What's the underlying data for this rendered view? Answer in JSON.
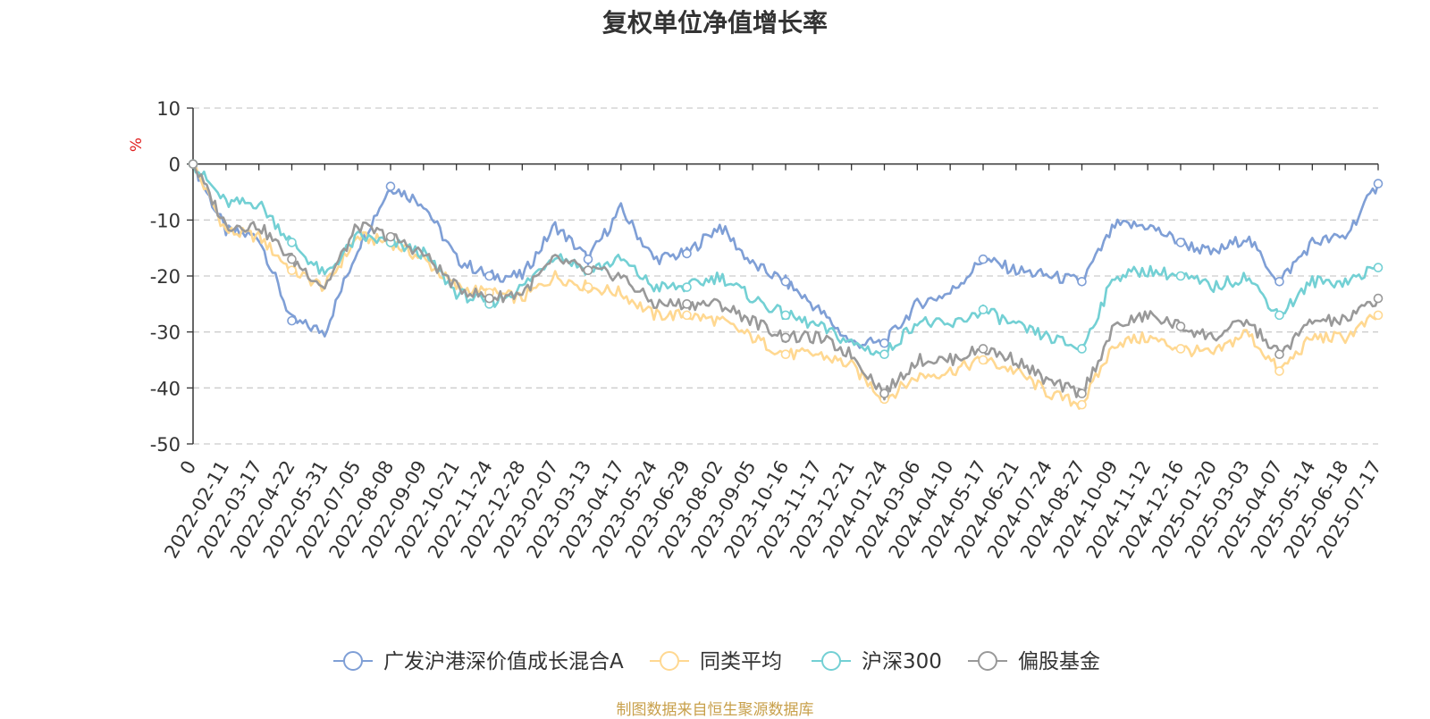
{
  "chart_data": {
    "type": "line",
    "title": "复权单位净值增长率",
    "ylabel": "%",
    "ylim": [
      -50,
      10
    ],
    "yticks": [
      10,
      0,
      -10,
      -20,
      -30,
      -40,
      -50
    ],
    "grid": true,
    "legend_position": "bottom",
    "x_ticks": [
      "0",
      "2022-02-11",
      "2022-03-17",
      "2022-04-22",
      "2022-05-31",
      "2022-07-05",
      "2022-08-08",
      "2022-09-09",
      "2022-10-21",
      "2022-11-24",
      "2022-12-28",
      "2023-02-07",
      "2023-03-13",
      "2023-04-17",
      "2023-05-24",
      "2023-06-29",
      "2023-08-02",
      "2023-09-05",
      "2023-10-16",
      "2023-11-17",
      "2023-12-21",
      "2024-01-24",
      "2024-03-06",
      "2024-04-10",
      "2024-05-17",
      "2024-06-21",
      "2024-07-24",
      "2024-08-27",
      "2024-10-09",
      "2024-11-12",
      "2024-12-16",
      "2025-01-20",
      "2025-03-03",
      "2025-04-07",
      "2025-05-14",
      "2025-06-18",
      "2025-07-17"
    ],
    "series": [
      {
        "name": "广发沪港深价值成长混合A",
        "color": "#7f9fd6",
        "values": [
          0,
          -12,
          -13,
          -28,
          -30,
          -15,
          -4,
          -7,
          -17,
          -20,
          -20,
          -11,
          -17,
          -8,
          -17,
          -16,
          -11,
          -18,
          -21,
          -26,
          -32,
          -32,
          -25,
          -23,
          -17,
          -19,
          -20,
          -21,
          -11,
          -11,
          -14,
          -16,
          -13,
          -21,
          -14,
          -13,
          -3.5
        ]
      },
      {
        "name": "同类平均",
        "color": "#ffd891",
        "values": [
          0,
          -12,
          -13,
          -19,
          -22,
          -13,
          -14,
          -17,
          -22,
          -23,
          -24,
          -20,
          -22,
          -23,
          -27,
          -27,
          -28,
          -31,
          -34,
          -34,
          -36,
          -42,
          -38,
          -37,
          -35,
          -37,
          -41,
          -43,
          -32,
          -31,
          -33,
          -34,
          -30,
          -37,
          -31,
          -31,
          -27
        ]
      },
      {
        "name": "沪深300",
        "color": "#73d0d4",
        "values": [
          0,
          -7,
          -7,
          -14,
          -20,
          -13,
          -14,
          -16,
          -23,
          -25,
          -22,
          -16,
          -19,
          -17,
          -22,
          -22,
          -20,
          -24,
          -27,
          -29,
          -32,
          -34,
          -28,
          -29,
          -26,
          -29,
          -31,
          -33,
          -20,
          -19,
          -20,
          -22,
          -20,
          -27,
          -21,
          -21,
          -18.5
        ]
      },
      {
        "name": "偏股基金",
        "color": "#999999",
        "values": [
          0,
          -11,
          -11,
          -17,
          -22,
          -11,
          -13,
          -16,
          -22,
          -24,
          -23,
          -17,
          -19,
          -20,
          -25,
          -25,
          -25,
          -28,
          -31,
          -31,
          -34,
          -41,
          -35,
          -35,
          -33,
          -35,
          -39,
          -41,
          -29,
          -27,
          -29,
          -31,
          -28,
          -34,
          -28,
          -28,
          -24
        ]
      }
    ]
  },
  "source_note": "制图数据来自恒生聚源数据库"
}
